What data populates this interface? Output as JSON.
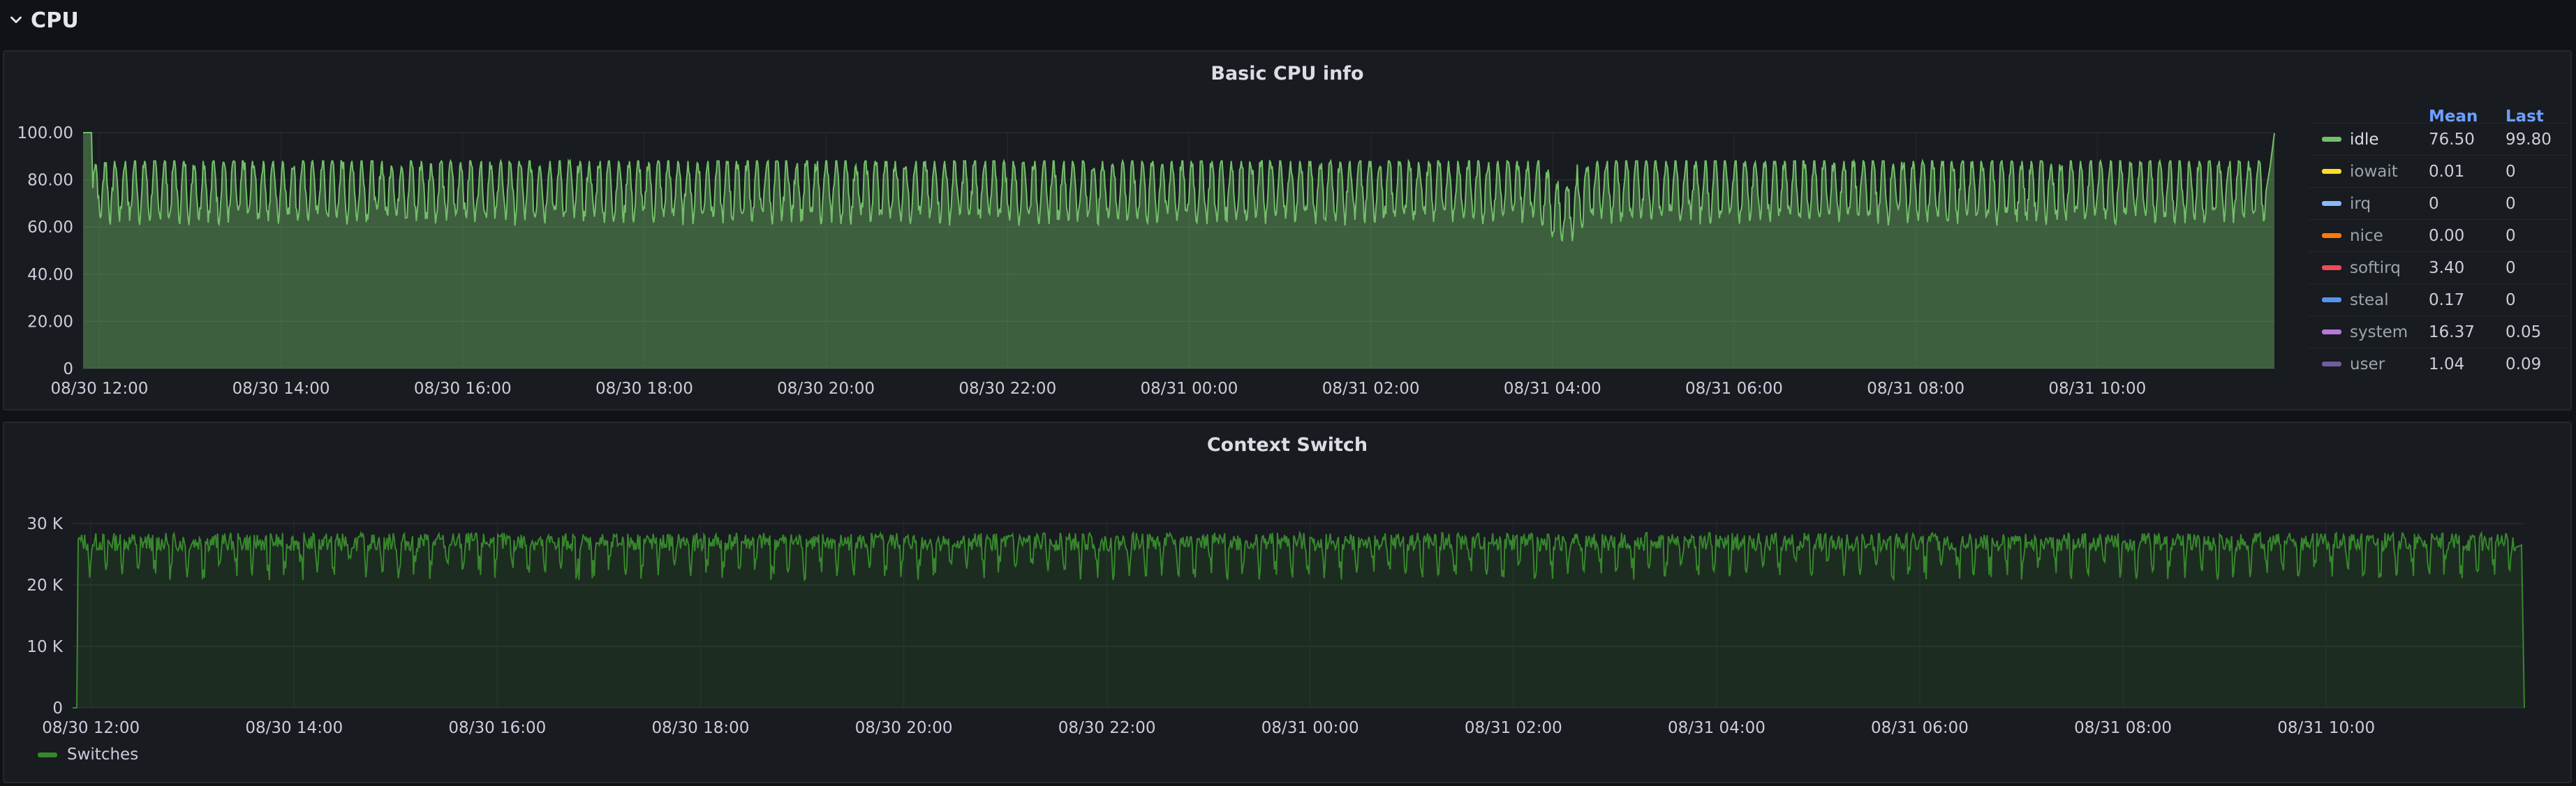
{
  "row": {
    "title": "CPU",
    "chevron_icon": "chevron-down-icon"
  },
  "panels": {
    "basic": {
      "title": "Basic CPU info",
      "legend": {
        "mean_header": "Mean",
        "last_header": "Last",
        "items": [
          {
            "name": "idle",
            "color": "#73bf69",
            "mean": "76.50",
            "last": "99.80"
          },
          {
            "name": "iowait",
            "color": "#fade2a",
            "mean": "0.01",
            "last": "0"
          },
          {
            "name": "irq",
            "color": "#8ab8ff",
            "mean": "0",
            "last": "0"
          },
          {
            "name": "nice",
            "color": "#ff780a",
            "mean": "0.00",
            "last": "0"
          },
          {
            "name": "softirq",
            "color": "#f2495c",
            "mean": "3.40",
            "last": "0"
          },
          {
            "name": "steal",
            "color": "#5794f2",
            "mean": "0.17",
            "last": "0"
          },
          {
            "name": "system",
            "color": "#b877d9",
            "mean": "16.37",
            "last": "0.05"
          },
          {
            "name": "user",
            "color": "#705da0",
            "mean": "1.04",
            "last": "0.09"
          }
        ]
      }
    },
    "context": {
      "title": "Context Switch",
      "legend": {
        "name": "Switches",
        "color": "#37872d"
      }
    }
  },
  "chart_data": [
    {
      "type": "area",
      "title": "Basic CPU info",
      "y_ticks": [
        "0",
        "20.00",
        "40.00",
        "60.00",
        "80.00",
        "100.00"
      ],
      "ylim": [
        0,
        100
      ],
      "x_ticks": [
        "08/30 12:00",
        "08/30 14:00",
        "08/30 16:00",
        "08/30 18:00",
        "08/30 20:00",
        "08/30 22:00",
        "08/31 00:00",
        "08/31 02:00",
        "08/31 04:00",
        "08/31 06:00",
        "08/31 08:00",
        "08/31 10:00"
      ],
      "x_range_hours": [
        11.82,
        35.95
      ],
      "series": [
        {
          "name": "idle",
          "color": "#73bf69",
          "pattern": "oscillating",
          "base": 76.5,
          "amplitude": 12,
          "cycles": 220,
          "start": 100,
          "end": 99.8
        }
      ],
      "grid": true,
      "legend_placement": "right"
    },
    {
      "type": "area",
      "title": "Context Switch",
      "y_ticks": [
        "0",
        "10 K",
        "20 K",
        "30 K"
      ],
      "ylim": [
        0,
        32000
      ],
      "x_ticks": [
        "08/30 12:00",
        "08/30 14:00",
        "08/30 16:00",
        "08/30 18:00",
        "08/30 20:00",
        "08/30 22:00",
        "08/31 00:00",
        "08/31 02:00",
        "08/31 04:00",
        "08/31 06:00",
        "08/31 08:00",
        "08/31 10:00"
      ],
      "x_range_hours": [
        11.82,
        35.95
      ],
      "series": [
        {
          "name": "Switches",
          "color": "#37872d",
          "pattern": "jittery-plateau",
          "base": 27000,
          "dip": 22000,
          "cycles": 150,
          "start": 0,
          "end": 0
        }
      ],
      "grid": true,
      "legend_placement": "bottom"
    }
  ]
}
